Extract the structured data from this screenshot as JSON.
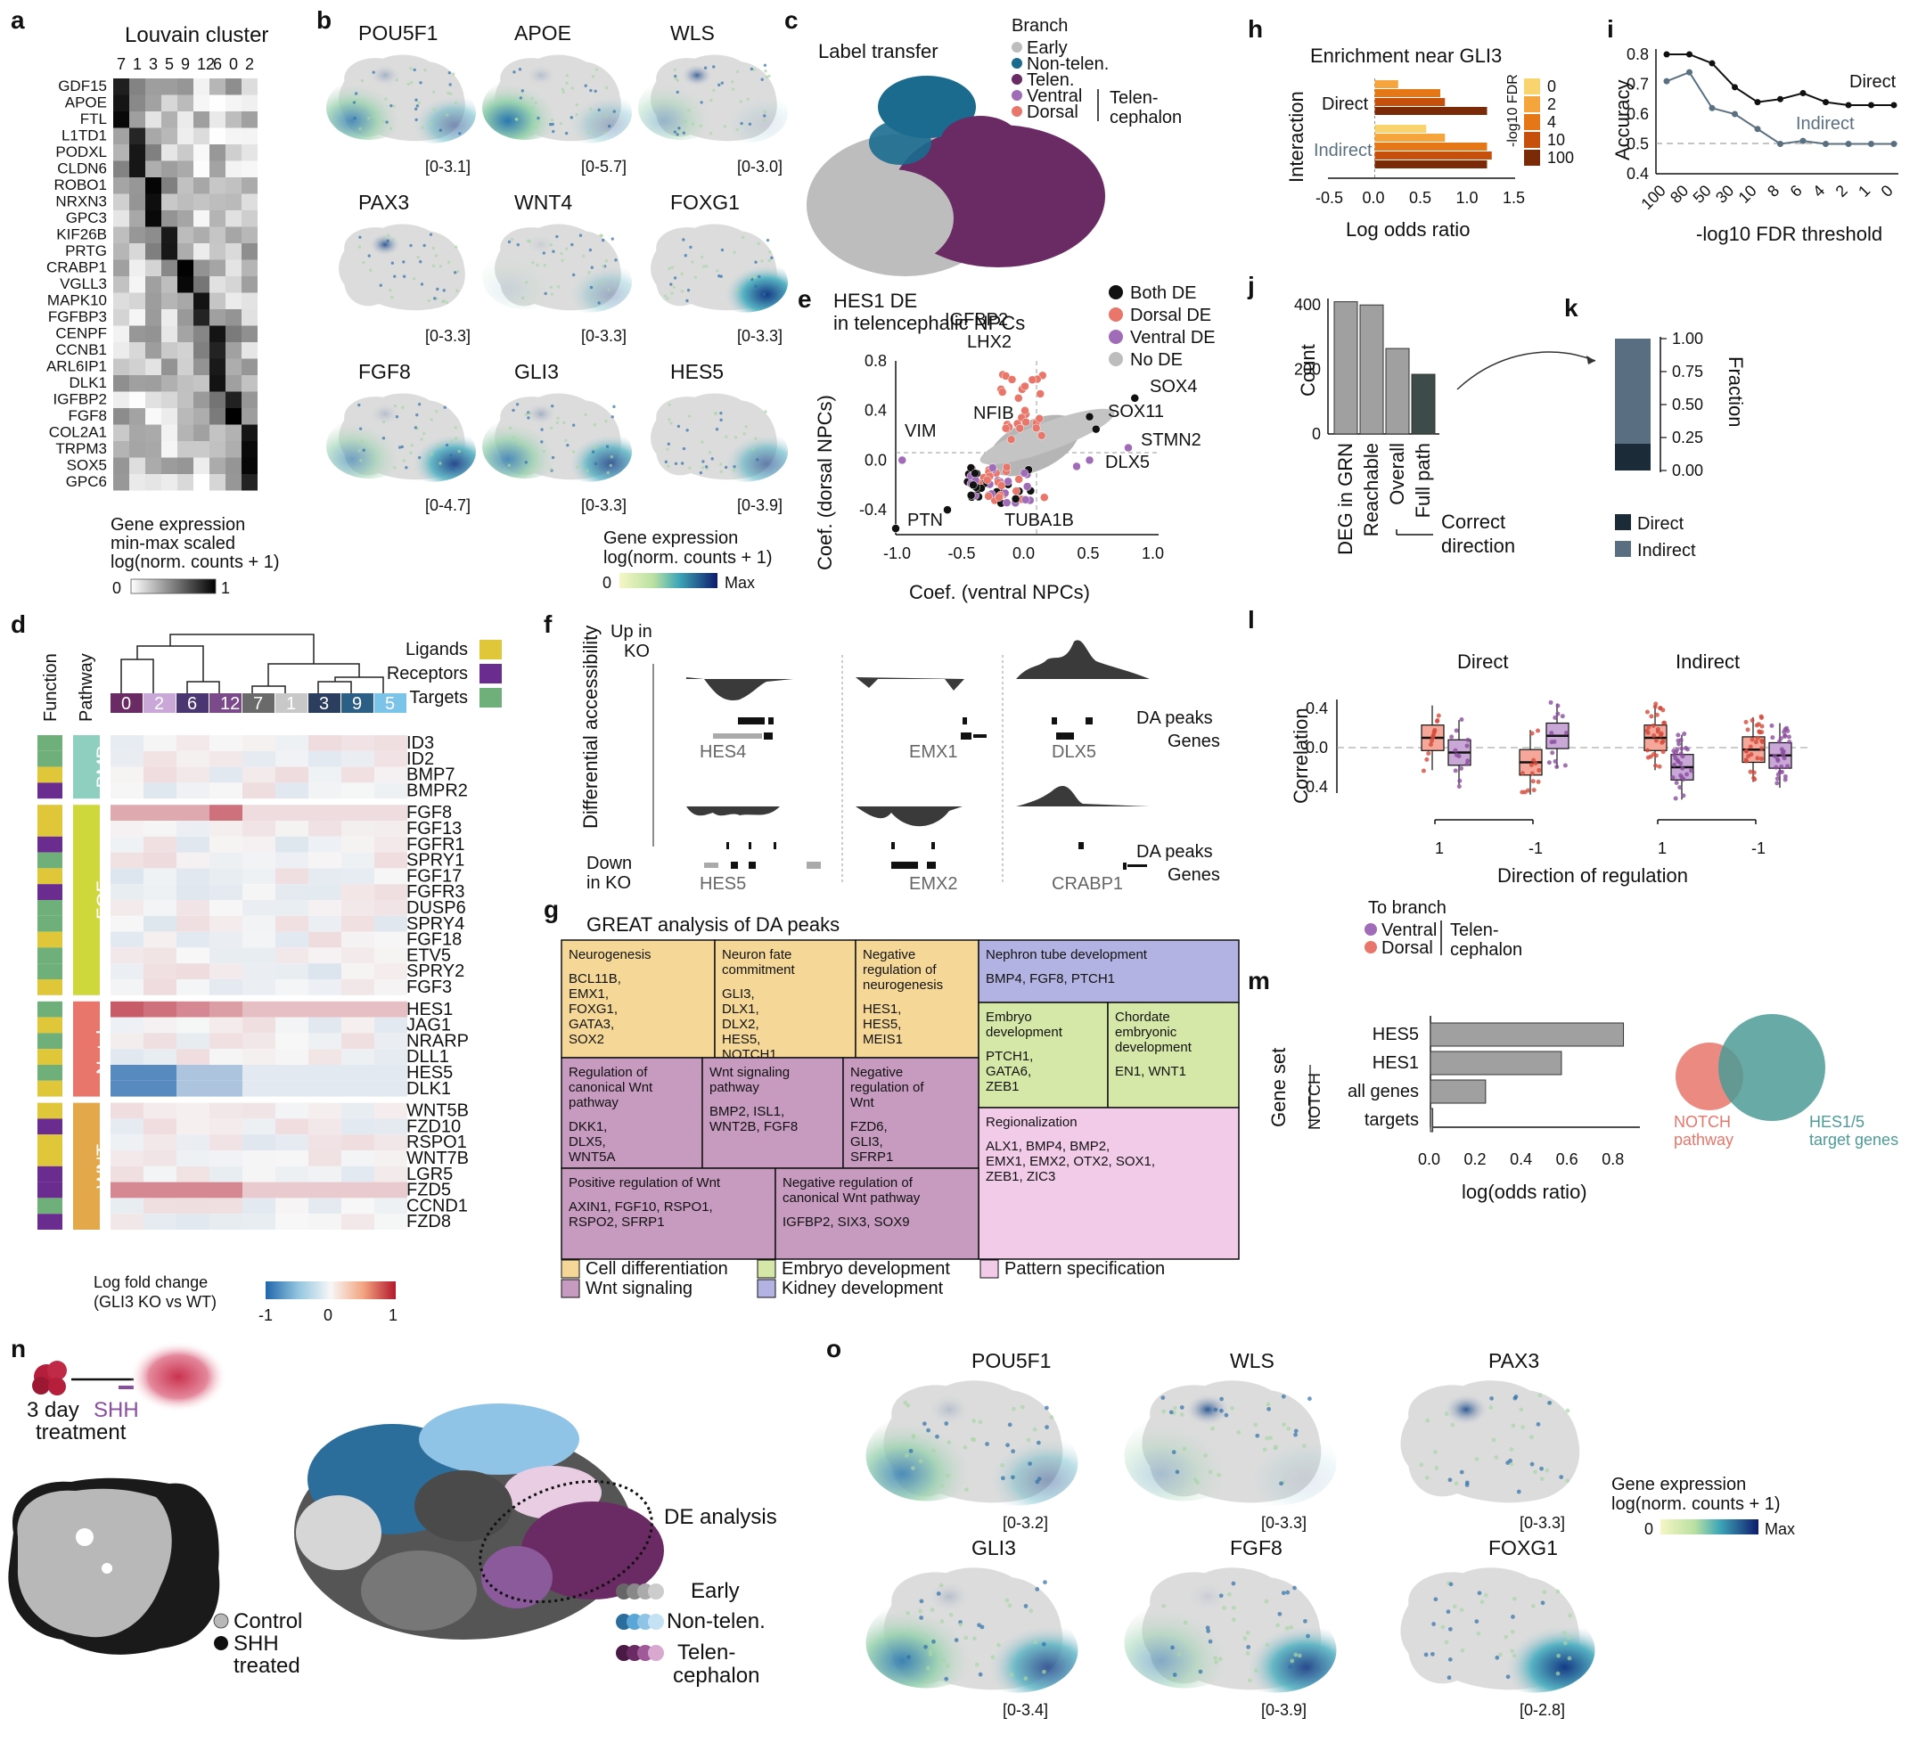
{
  "panel_labels": {
    "a": "a",
    "b": "b",
    "c": "c",
    "d": "d",
    "e": "e",
    "f": "f",
    "g": "g",
    "h": "h",
    "i": "i",
    "j": "j",
    "k": "k",
    "l": "l",
    "m": "m",
    "n": "n",
    "o": "o"
  },
  "colors": {
    "early": "#bdbdbd",
    "nontelen": "#1b6b8f",
    "telen": "#6a2a63",
    "ventral": "#a06cb8",
    "dorsal": "#e8766a",
    "ligands": "#e0c73a",
    "receptors": "#6a2c8e",
    "targets": "#6fb07a",
    "pathway_bmp": "#8fcfbf",
    "pathway_fgf": "#cfd83a",
    "pathway_notch": "#e8766a",
    "pathway_wnt": "#e3a84a"
  },
  "panel_a": {
    "title": "Louvain cluster",
    "clusters": [
      "7",
      "1",
      "3",
      "5",
      "9",
      "12",
      "6",
      "0",
      "2"
    ],
    "genes": [
      "GDF15",
      "APOE",
      "FTL",
      "L1TD1",
      "PODXL",
      "CLDN6",
      "ROBO1",
      "NRXN3",
      "GPC3",
      "KIF26B",
      "PRTG",
      "CRABP1",
      "VGLL3",
      "MAPK10",
      "FGFBP3",
      "CENPF",
      "CCNB1",
      "ARL6IP1",
      "DLK1",
      "IGFBP2",
      "FGF8",
      "COL2A1",
      "TRPM3",
      "SOX5",
      "GPC6"
    ],
    "legend_title": [
      "Gene expression",
      "min-max scaled",
      "log(norm. counts + 1)"
    ],
    "legend_min": "0",
    "legend_max": "1"
  },
  "panel_b": {
    "genes": [
      {
        "name": "POU5F1",
        "range": "[0-3.1]"
      },
      {
        "name": "APOE",
        "range": "[0-5.7]"
      },
      {
        "name": "WLS",
        "range": "[0-3.0]"
      },
      {
        "name": "PAX3",
        "range": "[0-3.3]"
      },
      {
        "name": "WNT4",
        "range": "[0-3.3]"
      },
      {
        "name": "FOXG1",
        "range": "[0-3.3]"
      },
      {
        "name": "FGF8",
        "range": "[0-4.7]"
      },
      {
        "name": "GLI3",
        "range": "[0-3.3]"
      },
      {
        "name": "HES5",
        "range": "[0-3.9]"
      }
    ],
    "legend_title": [
      "Gene expression",
      "log(norm. counts + 1)"
    ],
    "legend_min": "0",
    "legend_max": "Max"
  },
  "panel_c": {
    "title": "Label transfer",
    "legend_title": "Branch",
    "entries": [
      "Early",
      "Non-telen.",
      "Telen.",
      "Ventral",
      "Dorsal"
    ],
    "bracket_label": [
      "Telen-",
      "cephalon"
    ]
  },
  "panel_d": {
    "col_function": "Function",
    "col_pathway": "Pathway",
    "clusters": [
      "0",
      "2",
      "6",
      "12",
      "7",
      "1",
      "3",
      "9",
      "5"
    ],
    "legend_entries": [
      "Ligands",
      "Receptors",
      "Targets"
    ],
    "pathways": [
      "BMP",
      "FGF",
      "Notch",
      "WNT"
    ],
    "genes": [
      "ID3",
      "ID2",
      "BMP7",
      "BMPR2",
      "FGF8",
      "FGF13",
      "FGFR1",
      "SPRY1",
      "FGF17",
      "FGFR3",
      "DUSP6",
      "SPRY4",
      "FGF18",
      "ETV5",
      "SPRY2",
      "FGF3",
      "HES1",
      "JAG1",
      "NRARP",
      "DLL1",
      "HES5",
      "DLK1",
      "WNT5B",
      "FZD10",
      "RSPO1",
      "WNT7B",
      "LGR5",
      "FZD5",
      "CCND1",
      "FZD8"
    ],
    "legend_title": [
      "Log fold change",
      "(GLI3 KO vs WT)"
    ],
    "legend_ticks": [
      "-1",
      "0",
      "1"
    ]
  },
  "panel_e": {
    "title": [
      "HES1 DE",
      "in telencephalic NPCs"
    ],
    "xlabel": "Coef. (ventral NPCs)",
    "ylabel": "Coef. (dorsal NPCs)",
    "xticks": [
      "-1.0",
      "-0.5",
      "0.0",
      "0.5",
      "1.0"
    ],
    "yticks": [
      "0.8",
      "0.4",
      "0.0",
      "-0.4"
    ],
    "legend": [
      "Both DE",
      "Dorsal DE",
      "Ventral DE",
      "No DE"
    ],
    "labels": [
      "IGFBP2",
      "LHX2",
      "SOX4",
      "SOX11",
      "NFIB",
      "STMN2",
      "VIM",
      "DLX5",
      "PTN",
      "TUBA1B"
    ]
  },
  "panel_f": {
    "ylabel": "Differential accessibility",
    "up": [
      "Up in",
      "KO"
    ],
    "down": [
      "Down",
      "in KO"
    ],
    "genes_top": [
      "HES4",
      "EMX1",
      "DLX5"
    ],
    "genes_bottom": [
      "HES5",
      "EMX2",
      "CRABP1"
    ],
    "track_labels": [
      "DA peaks",
      "Genes"
    ]
  },
  "panel_g": {
    "title": "GREAT analysis of DA peaks",
    "boxes": [
      {
        "title": [
          "Neurogenesis"
        ],
        "genes": [
          "BCL11B,",
          "EMX1,",
          "FOXG1,",
          "GATA3,",
          "SOX2"
        ]
      },
      {
        "title": [
          "Neuron fate",
          "commitment"
        ],
        "genes": [
          "GLI3,",
          "DLX1,",
          "DLX2,",
          "HES5,",
          "NOTCH1"
        ]
      },
      {
        "title": [
          "Negative",
          "regulation of",
          "neurogenesis"
        ],
        "genes": [
          "HES1,",
          "HES5,",
          "MEIS1"
        ]
      },
      {
        "title": [
          "Nephron tube development"
        ],
        "genes": [
          "BMP4, FGF8, PTCH1"
        ]
      },
      {
        "title": [
          "Embryo",
          "development"
        ],
        "genes": [
          "PTCH1,",
          "GATA6,",
          "ZEB1"
        ]
      },
      {
        "title": [
          "Chordate",
          "embryonic",
          "development"
        ],
        "genes": [
          "EN1, WNT1"
        ]
      },
      {
        "title": [
          "Regulation of",
          "canonical Wnt",
          "pathway"
        ],
        "genes": [
          "DKK1,",
          "DLX5,",
          "WNT5A"
        ]
      },
      {
        "title": [
          "Wnt signaling",
          "pathway"
        ],
        "genes": [
          "BMP2, ISL1,",
          "WNT2B, FGF8"
        ]
      },
      {
        "title": [
          "Negative",
          "regulation of",
          "Wnt"
        ],
        "genes": [
          "FZD6,",
          "GLI3,",
          "SFRP1"
        ]
      },
      {
        "title": [
          "Regionalization"
        ],
        "genes": [
          "ALX1, BMP4, BMP2,",
          "EMX1, EMX2, OTX2, SOX1,",
          "ZEB1, ZIC3"
        ]
      },
      {
        "title": [
          "Positive regulation of Wnt"
        ],
        "genes": [
          "AXIN1, FGF10, RSPO1,",
          "RSPO2, SFRP1"
        ]
      },
      {
        "title": [
          "Negative regulation of",
          "canonical Wnt pathway"
        ],
        "genes": [
          "IGFBP2, SIX3, SOX9"
        ]
      }
    ],
    "legend": [
      "Cell differentiation",
      "Wnt signaling",
      "Embryo development",
      "Kidney development",
      "Pattern specification"
    ],
    "colors": {
      "cell": "#f5d898",
      "wnt": "#c79bc0",
      "embryo": "#d6e8a8",
      "kidney": "#b3b3e3",
      "pattern": "#f2cbe9"
    }
  },
  "panel_h": {
    "title": "Enrichment near GLI3",
    "ylabel": "Interaction",
    "xlabel": "Log odds ratio",
    "xticks": [
      "-0.5",
      "0.0",
      "0.5",
      "1.0",
      "1.5"
    ],
    "groups": [
      "Direct",
      "Indirect"
    ],
    "legend_title": "-log10 FDR",
    "legend_entries": [
      "0",
      "2",
      "4",
      "10",
      "100"
    ]
  },
  "panel_i": {
    "ylabel": "Accuracy",
    "xlabel": "-log10 FDR threshold",
    "yticks": [
      "0.8",
      "0.7",
      "0.6",
      "0.5",
      "0.4"
    ],
    "xticks": [
      "100",
      "80",
      "50",
      "30",
      "10",
      "8",
      "6",
      "4",
      "2",
      "1",
      "0"
    ],
    "series_names": [
      "Direct",
      "Indirect"
    ]
  },
  "panel_j": {
    "ylabel": "Count",
    "yticks": [
      "400",
      "200",
      "0"
    ],
    "categories": [
      "DEG in GRN",
      "Reachable",
      "Overall",
      "Full path"
    ],
    "bracket_label": [
      "Correct",
      "direction"
    ]
  },
  "panel_k": {
    "ylabel": "Fraction",
    "yticks": [
      "1.00",
      "0.75",
      "0.50",
      "0.25",
      "0.00"
    ],
    "legend": [
      "Direct",
      "Indirect"
    ]
  },
  "panel_l": {
    "ylabel": "Correlation",
    "xlabel": "Direction of regulation",
    "yticks": [
      "0.4",
      "0.0",
      "-0.4"
    ],
    "groups": [
      "Direct",
      "Indirect"
    ],
    "xticks": [
      "1",
      "-1",
      "1",
      "-1"
    ],
    "legend_title": "To branch",
    "legend": [
      "Ventral",
      "Dorsal"
    ],
    "bracket_label": [
      "Telen-",
      "cephalon"
    ]
  },
  "panel_m": {
    "ylabel": "Gene set",
    "xlabel": "log(odds ratio)",
    "categories": [
      "HES5",
      "HES1",
      "all genes",
      "targets"
    ],
    "group_label": "NOTCH",
    "xticks": [
      "0.0",
      "0.2",
      "0.4",
      "0.6",
      "0.8"
    ],
    "venn": [
      "NOTCH",
      "pathway",
      "HES1/5",
      "target genes"
    ]
  },
  "panel_n": {
    "treatment": [
      "3 day",
      "SHH",
      "treatment"
    ],
    "legend": [
      "Control",
      "SHH",
      "treated"
    ],
    "annotation": "DE analysis",
    "branches": [
      "Early",
      "Non-telen.",
      "Telen-",
      "cephalon"
    ]
  },
  "panel_o": {
    "genes": [
      {
        "name": "POU5F1",
        "range": "[0-3.2]"
      },
      {
        "name": "WLS",
        "range": "[0-3.3]"
      },
      {
        "name": "PAX3",
        "range": "[0-3.3]"
      },
      {
        "name": "GLI3",
        "range": "[0-3.4]"
      },
      {
        "name": "FGF8",
        "range": "[0-3.9]"
      },
      {
        "name": "FOXG1",
        "range": "[0-2.8]"
      }
    ],
    "legend_title": [
      "Gene expression",
      "log(norm. counts + 1)"
    ],
    "legend_min": "0",
    "legend_max": "Max"
  },
  "chart_data": [
    {
      "type": "line",
      "panel": "i",
      "ylabel": "Accuracy",
      "xlabel": "-log10 FDR threshold",
      "categories": [
        "100",
        "80",
        "50",
        "30",
        "10",
        "8",
        "6",
        "4",
        "2",
        "1",
        "0"
      ],
      "ylim": [
        0.4,
        0.8
      ],
      "series": [
        {
          "name": "Direct",
          "values": [
            0.8,
            0.8,
            0.77,
            0.69,
            0.64,
            0.65,
            0.67,
            0.64,
            0.63,
            0.63,
            0.63
          ]
        },
        {
          "name": "Indirect",
          "values": [
            0.71,
            0.74,
            0.62,
            0.6,
            0.55,
            0.5,
            0.51,
            0.5,
            0.5,
            0.5,
            0.5
          ]
        }
      ]
    },
    {
      "type": "bar",
      "panel": "j",
      "ylabel": "Count",
      "categories": [
        "DEG in GRN",
        "Reachable",
        "Overall",
        "Full path"
      ],
      "values": [
        410,
        400,
        265,
        185
      ],
      "ylim": [
        0,
        420
      ]
    },
    {
      "type": "bar",
      "panel": "k",
      "ylabel": "Fraction",
      "categories": [
        "Direct",
        "Indirect"
      ],
      "values": [
        0.2,
        0.8
      ],
      "ylim": [
        0,
        1
      ]
    },
    {
      "type": "bar",
      "panel": "m",
      "xlabel": "log(odds ratio)",
      "categories": [
        "HES5",
        "HES1",
        "all genes",
        "targets"
      ],
      "values": [
        0.84,
        0.57,
        0.24,
        0.01
      ],
      "xlim": [
        0,
        0.9
      ]
    },
    {
      "type": "bar",
      "panel": "h",
      "xlabel": "Log odds ratio",
      "xlim": [
        -0.5,
        1.5
      ],
      "series": [
        {
          "name": "Direct",
          "values": [
            0.25,
            0.7,
            0.75,
            1.2
          ]
        },
        {
          "name": "Indirect",
          "values": [
            0.55,
            0.75,
            1.2,
            1.25,
            1.2
          ]
        }
      ]
    },
    {
      "type": "scatter",
      "panel": "e",
      "xlabel": "Coef. (ventral NPCs)",
      "ylabel": "Coef. (dorsal NPCs)",
      "xlim": [
        -1.0,
        1.0
      ],
      "ylim": [
        -0.6,
        0.8
      ],
      "series": [
        {
          "name": "Both DE",
          "x": [
            -1.0,
            0.85,
            0.5,
            -0.6,
            -0.4,
            0.55
          ],
          "y": [
            -0.55,
            0.5,
            0.35,
            -0.4,
            -0.2,
            0.25
          ]
        },
        {
          "name": "Dorsal DE",
          "x": [
            -0.1,
            -0.05,
            0.0,
            -0.2,
            0.15
          ],
          "y": [
            0.65,
            0.5,
            0.4,
            -0.3,
            -0.3
          ]
        },
        {
          "name": "Ventral DE",
          "x": [
            -0.95,
            0.5,
            0.8,
            0.4
          ],
          "y": [
            0.0,
            0.0,
            0.1,
            -0.05
          ]
        }
      ]
    }
  ]
}
